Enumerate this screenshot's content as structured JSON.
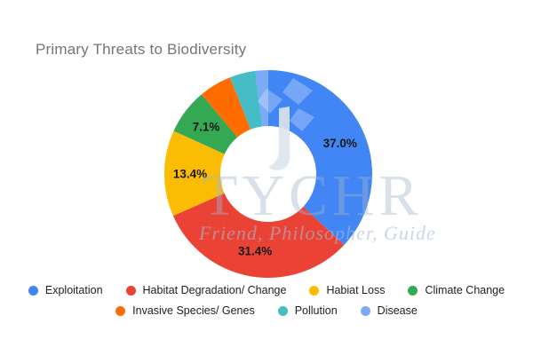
{
  "chart_data": {
    "type": "pie",
    "donut": true,
    "title": "Primary Threats to Biodiversity",
    "title_color": "#757575",
    "start_angle_deg": 0,
    "direction": "clockwise",
    "legend_position": "bottom",
    "slices": [
      {
        "label": "Exploitation",
        "value": 37.0,
        "pct_label": "37.0%",
        "color": "#4285F4",
        "label_shown": true
      },
      {
        "label": "Habitat Degradation/ Change",
        "value": 31.4,
        "pct_label": "31.4%",
        "color": "#EA4335",
        "label_shown": true
      },
      {
        "label": "Habiat Loss",
        "value": 13.4,
        "pct_label": "13.4%",
        "color": "#FBBC04",
        "label_shown": true
      },
      {
        "label": "Climate Change",
        "value": 7.1,
        "pct_label": "7.1%",
        "color": "#34A853",
        "label_shown": true
      },
      {
        "label": "Invasive Species/ Genes",
        "value": 5.1,
        "pct_label": "",
        "color": "#FF6D01",
        "label_shown": false
      },
      {
        "label": "Pollution",
        "value": 4.0,
        "pct_label": "",
        "color": "#46BDC6",
        "label_shown": false
      },
      {
        "label": "Disease",
        "value": 2.0,
        "pct_label": "",
        "color": "#7BAAF7",
        "label_shown": false
      }
    ]
  },
  "watermark": {
    "brand": "TYCHR",
    "tagline": "Friend, Philosopher, Guide",
    "logo": "tree-logo"
  }
}
